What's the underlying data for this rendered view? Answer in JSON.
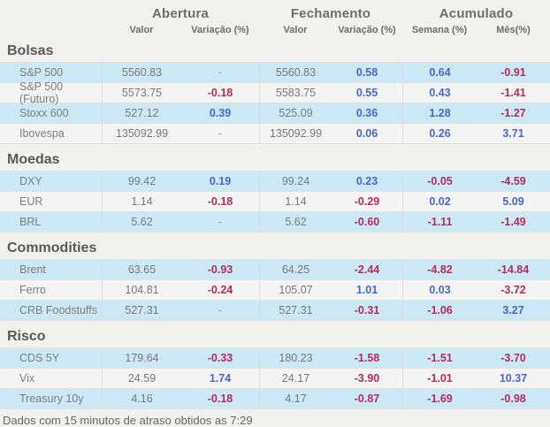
{
  "header": {
    "groups": [
      {
        "label": "Abertura"
      },
      {
        "label": "Fechamento"
      },
      {
        "label": "Acumulado"
      }
    ],
    "subcolumns": [
      "Valor",
      "Variação (%)",
      "Valor",
      "Variação (%)",
      "Semana (%)",
      "Mês(%)"
    ]
  },
  "colors": {
    "positive": "#4767cf",
    "negative": "#b62c5c",
    "neutral": "#9a9a9a",
    "row-highlight": "#cbe9f5",
    "row-alt": "#f4f4f4"
  },
  "sections": [
    {
      "title": "Bolsas",
      "rows": [
        {
          "label": "S&P 500",
          "open_value": "5560.83",
          "open_var": "-",
          "open_var_trend": "flat",
          "close_value": "5560.83",
          "close_var": "0.58",
          "close_var_trend": "up",
          "week": "0.64",
          "week_trend": "up",
          "month": "-0.91",
          "month_trend": "down"
        },
        {
          "label": "S&P 500 (Futuro)",
          "open_value": "5573.75",
          "open_var": "-0.18",
          "open_var_trend": "down",
          "close_value": "5583.75",
          "close_var": "0.55",
          "close_var_trend": "up",
          "week": "0.43",
          "week_trend": "up",
          "month": "-1.41",
          "month_trend": "down"
        },
        {
          "label": "Stoxx 600",
          "open_value": "527.12",
          "open_var": "0.39",
          "open_var_trend": "up",
          "close_value": "525.09",
          "close_var": "0.36",
          "close_var_trend": "up",
          "week": "1.28",
          "week_trend": "up",
          "month": "-1.27",
          "month_trend": "down"
        },
        {
          "label": "Ibovespa",
          "open_value": "135092.99",
          "open_var": "-",
          "open_var_trend": "flat",
          "close_value": "135092.99",
          "close_var": "0.06",
          "close_var_trend": "up",
          "week": "0.26",
          "week_trend": "up",
          "month": "3.71",
          "month_trend": "up"
        }
      ]
    },
    {
      "title": "Moedas",
      "rows": [
        {
          "label": "DXY",
          "open_value": "99.42",
          "open_var": "0.19",
          "open_var_trend": "up",
          "close_value": "99.24",
          "close_var": "0.23",
          "close_var_trend": "up",
          "week": "-0.05",
          "week_trend": "down",
          "month": "-4.59",
          "month_trend": "down"
        },
        {
          "label": "EUR",
          "open_value": "1.14",
          "open_var": "-0.18",
          "open_var_trend": "down",
          "close_value": "1.14",
          "close_var": "-0.29",
          "close_var_trend": "down",
          "week": "0.02",
          "week_trend": "up",
          "month": "5.09",
          "month_trend": "up"
        },
        {
          "label": "BRL",
          "open_value": "5.62",
          "open_var": "-",
          "open_var_trend": "flat",
          "close_value": "5.62",
          "close_var": "-0.60",
          "close_var_trend": "down",
          "week": "-1.11",
          "week_trend": "down",
          "month": "-1.49",
          "month_trend": "down"
        }
      ]
    },
    {
      "title": "Commodities",
      "rows": [
        {
          "label": "Brent",
          "open_value": "63.65",
          "open_var": "-0.93",
          "open_var_trend": "down",
          "close_value": "64.25",
          "close_var": "-2.44",
          "close_var_trend": "down",
          "week": "-4.82",
          "week_trend": "down",
          "month": "-14.84",
          "month_trend": "down"
        },
        {
          "label": "Ferro",
          "open_value": "104.81",
          "open_var": "-0.24",
          "open_var_trend": "down",
          "close_value": "105.07",
          "close_var": "1.01",
          "close_var_trend": "up",
          "week": "0.03",
          "week_trend": "up",
          "month": "-3.72",
          "month_trend": "down"
        },
        {
          "label": "CRB Foodstuffs",
          "open_value": "527.31",
          "open_var": "-",
          "open_var_trend": "flat",
          "close_value": "527.31",
          "close_var": "-0.31",
          "close_var_trend": "down",
          "week": "-1.06",
          "week_trend": "down",
          "month": "3.27",
          "month_trend": "up"
        }
      ]
    },
    {
      "title": "Risco",
      "rows": [
        {
          "label": "CDS 5Y",
          "open_value": "179.64",
          "open_var": "-0.33",
          "open_var_trend": "down",
          "close_value": "180.23",
          "close_var": "-1.58",
          "close_var_trend": "down",
          "week": "-1.51",
          "week_trend": "down",
          "month": "-3.70",
          "month_trend": "down"
        },
        {
          "label": "Vix",
          "open_value": "24.59",
          "open_var": "1.74",
          "open_var_trend": "up",
          "close_value": "24.17",
          "close_var": "-3.90",
          "close_var_trend": "down",
          "week": "-1.01",
          "week_trend": "down",
          "month": "10.37",
          "month_trend": "up"
        },
        {
          "label": "Treasury 10y",
          "open_value": "4.16",
          "open_var": "-0.18",
          "open_var_trend": "down",
          "close_value": "4.17",
          "close_var": "-0.87",
          "close_var_trend": "down",
          "week": "-1.69",
          "week_trend": "down",
          "month": "-0.98",
          "month_trend": "down"
        }
      ]
    }
  ],
  "footer": {
    "note": "Dados com 15 minutos de atraso obtidos as 7:29"
  }
}
